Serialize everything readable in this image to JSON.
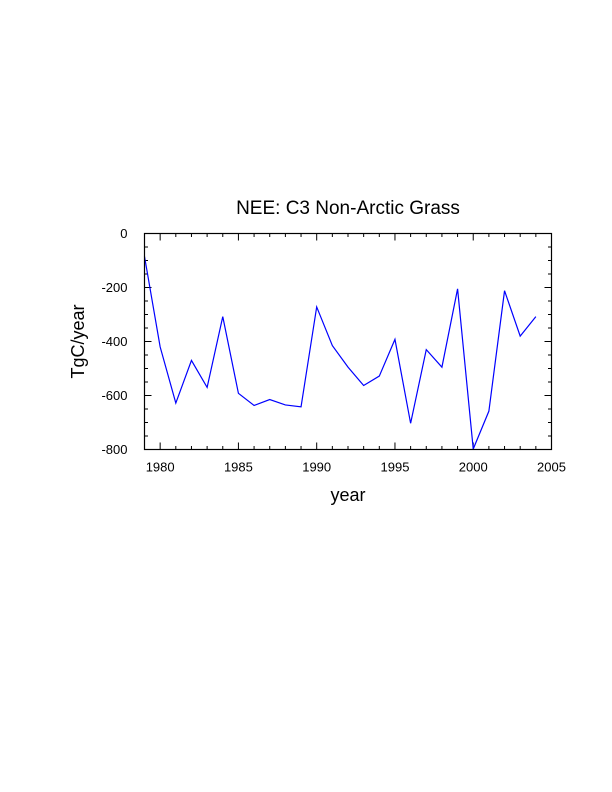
{
  "chart_data": {
    "type": "line",
    "title": "NEE: C3 Non-Arctic Grass",
    "xlabel": "year",
    "ylabel": "TgC/year",
    "xlim": [
      1979,
      2005
    ],
    "ylim": [
      -800,
      0
    ],
    "grid": false,
    "x_ticks": [
      1980,
      1985,
      1990,
      1995,
      2000,
      2005
    ],
    "x_tick_labels": [
      "1980",
      "1985",
      "1990",
      "1995",
      "2000",
      "2005"
    ],
    "y_ticks": [
      0,
      -200,
      -400,
      -600,
      -800
    ],
    "y_tick_labels": [
      "0",
      "-200",
      "-400",
      "-600",
      "-800"
    ],
    "line_color": "#0000ff",
    "x": [
      1979,
      1980,
      1981,
      1982,
      1983,
      1984,
      1985,
      1986,
      1987,
      1988,
      1989,
      1990,
      1991,
      1992,
      1993,
      1994,
      1995,
      1996,
      1997,
      1998,
      1999,
      2000,
      2001,
      2002,
      2003,
      2004
    ],
    "series": [
      {
        "values": [
          -85,
          -420,
          -628,
          -470,
          -570,
          -308,
          -592,
          -637,
          -615,
          -635,
          -642,
          -272,
          -415,
          -495,
          -563,
          -528,
          -392,
          -703,
          -430,
          -495,
          -205,
          -798,
          -658,
          -212,
          -380,
          -308
        ]
      }
    ]
  }
}
